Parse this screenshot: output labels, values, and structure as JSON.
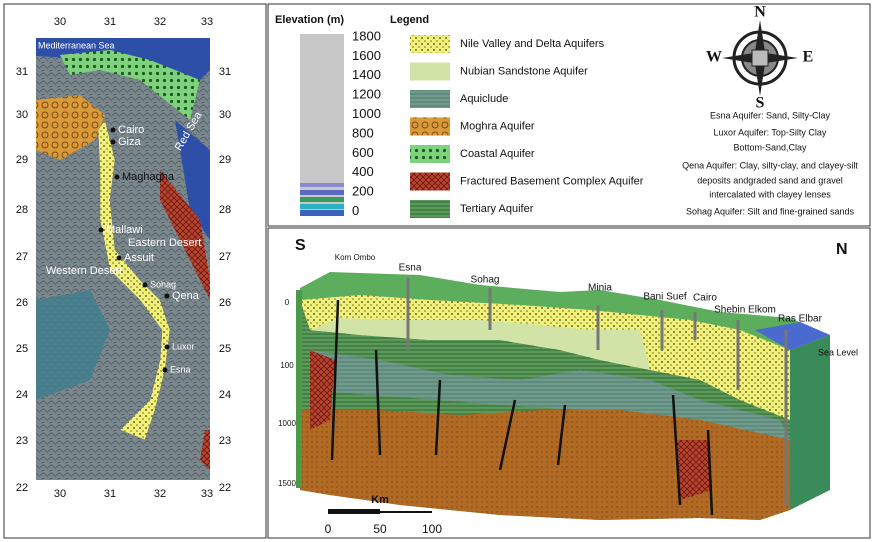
{
  "map": {
    "x_labels": [
      "30",
      "31",
      "32",
      "33"
    ],
    "y_labels": [
      "31",
      "30",
      "29",
      "28",
      "27",
      "26",
      "25",
      "24",
      "23",
      "22"
    ],
    "places": [
      "Mediterranean Sea",
      "Cairo",
      "Giza",
      "Red Sea",
      "Maghagha",
      "Mallawi",
      "Eastern Desert",
      "Assuit",
      "Western Desert",
      "Sohag",
      "Qena",
      "Luxor",
      "Esna"
    ]
  },
  "elevation": {
    "title": "Elevation (m)",
    "ticks": [
      "1800",
      "1600",
      "1400",
      "1200",
      "1000",
      "800",
      "600",
      "400",
      "200",
      "0"
    ]
  },
  "legend": {
    "title": "Legend",
    "items": [
      "Nile Valley and Delta Aquifers",
      "Nubian Sandstone Aquifer",
      "Aquiclude",
      "Moghra Aquifer",
      "Coastal Aquifer",
      "Fractured Basement Complex Aquifer",
      "Tertiary Aquifer"
    ]
  },
  "compass": {
    "n": "N",
    "s": "S",
    "e": "E",
    "w": "W"
  },
  "notes": [
    "Esna Aquifer: Sand, Silty-Clay",
    "Luxor Aquifer: Top-Silty Clay",
    "Bottom-Sand,Clay",
    "Qena Aquifer: Clay, silty-clay, and clayey-silt",
    "deposits andgraded sand and gravel",
    "intercalated with clayey lenses",
    "Sohag Aquifer: Silt and fine-grained sands"
  ],
  "section": {
    "south": "S",
    "north": "N",
    "locations": [
      "Kom Ombo",
      "Esna",
      "Sohag",
      "Minia",
      "Bani Suef",
      "Cairo",
      "Shebin Elkom",
      "Ras Elbar"
    ],
    "sea_level": "Sea Level",
    "depths": [
      "0",
      "100",
      "1000",
      "1500"
    ],
    "scale_unit": "Km",
    "scale_labels": [
      "0",
      "50",
      "100"
    ]
  }
}
